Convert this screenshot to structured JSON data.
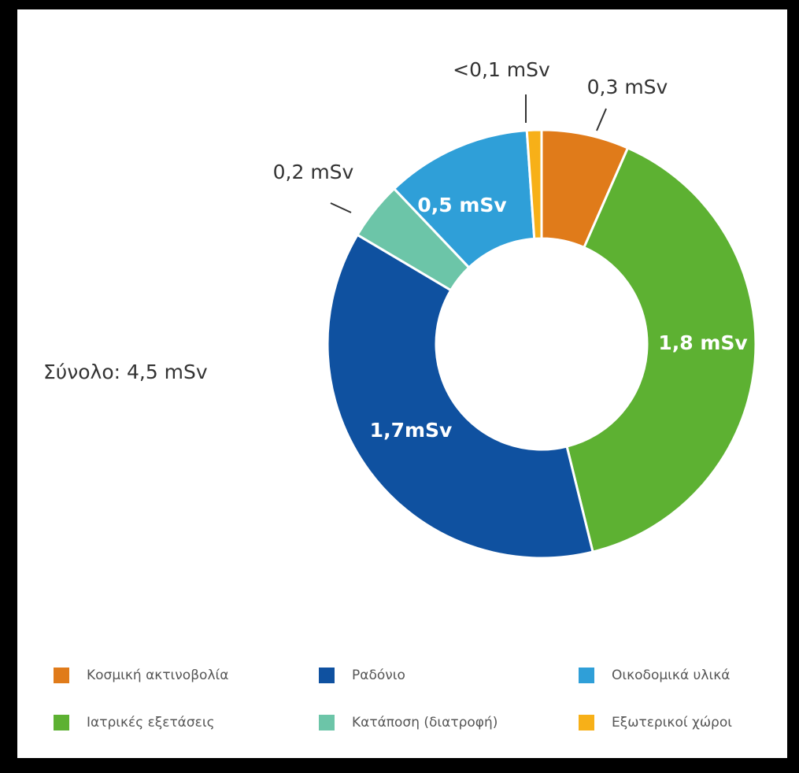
{
  "chart_data": {
    "type": "donut",
    "annotation": "Σύνολο: 4,5 mSv",
    "categories": [
      "Κοσμική ακτινοβολία",
      "Ιατρικές εξετάσεις",
      "Ραδόνιο",
      "Κατάποση (διατροφή)",
      "Οικοδομικά υλικά",
      "Εξωτερικοί χώροι"
    ],
    "values": [
      0.3,
      1.8,
      1.7,
      0.2,
      0.5,
      0.05
    ],
    "value_labels": [
      "0,3 mSv",
      "1,8 mSv",
      "1,7mSv",
      "0,2 mSv",
      "0,5 mSv",
      "<0,1 mSv"
    ],
    "colors": [
      "#e07b1a",
      "#5db132",
      "#0f51a0",
      "#6cc5a8",
      "#2f9fd8",
      "#f7b018"
    ]
  }
}
